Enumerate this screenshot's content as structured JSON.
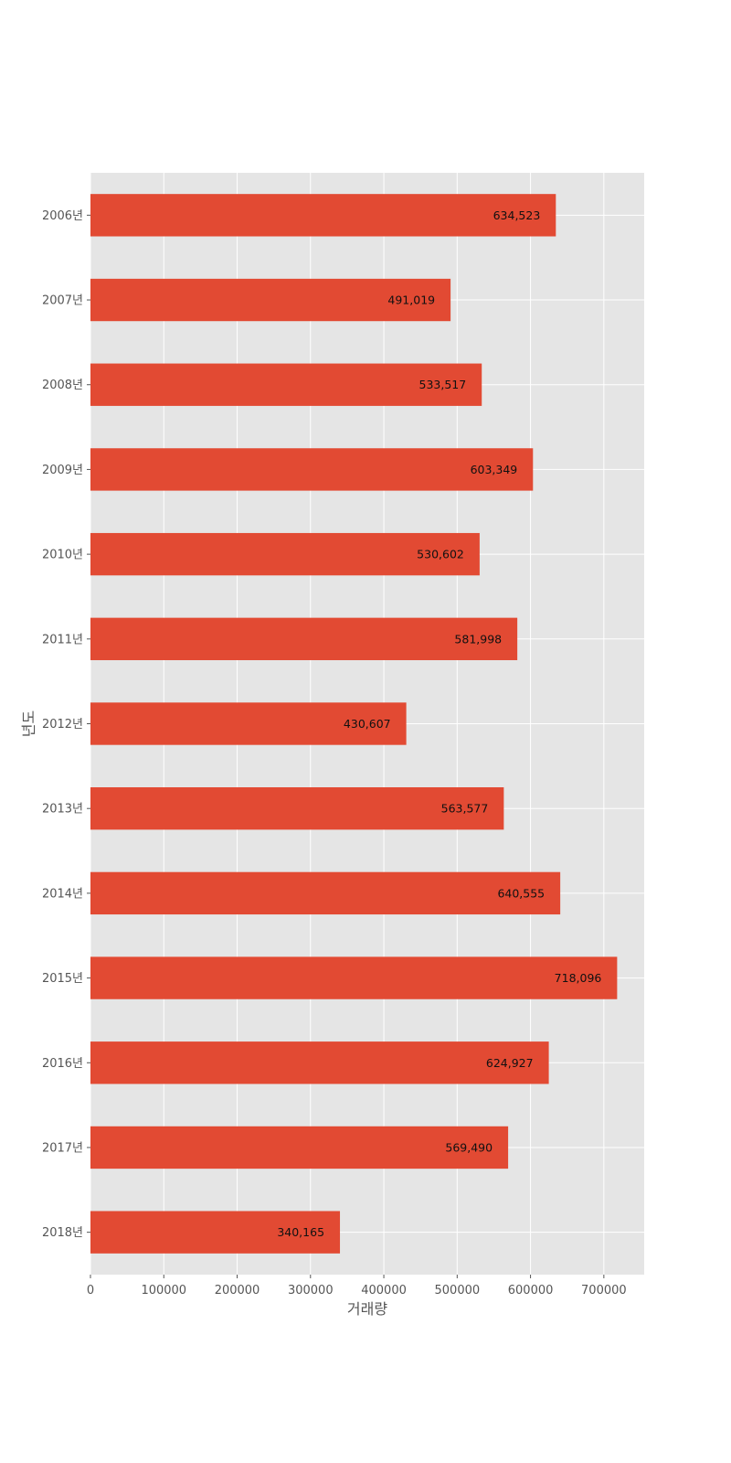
{
  "chart_data": {
    "type": "bar",
    "orientation": "horizontal",
    "categories": [
      "2006년",
      "2007년",
      "2008년",
      "2009년",
      "2010년",
      "2011년",
      "2012년",
      "2013년",
      "2014년",
      "2015년",
      "2016년",
      "2017년",
      "2018년"
    ],
    "values": [
      634523,
      491019,
      533517,
      603349,
      530602,
      581998,
      430607,
      563577,
      640555,
      718096,
      624927,
      569490,
      340165
    ],
    "data_labels": [
      "634,523",
      "491,019",
      "533,517",
      "603,349",
      "530,602",
      "581,998",
      "430,607",
      "563,577",
      "640,555",
      "718,096",
      "624,927",
      "569,490",
      "340,165"
    ],
    "xlabel": "거래량",
    "ylabel": "년도",
    "xlim": [
      0,
      755000
    ],
    "xticks": [
      0,
      100000,
      200000,
      300000,
      400000,
      500000,
      600000,
      700000
    ],
    "xtick_labels": [
      "0",
      "100000",
      "200000",
      "300000",
      "400000",
      "500000",
      "600000",
      "700000"
    ],
    "grid": true,
    "style": "ggplot",
    "colors": {
      "bar": "#E24A33",
      "plot_background": "#E5E5E5",
      "grid": "#FFFFFF",
      "tick_text": "#555555",
      "label_text": "#111111"
    }
  }
}
